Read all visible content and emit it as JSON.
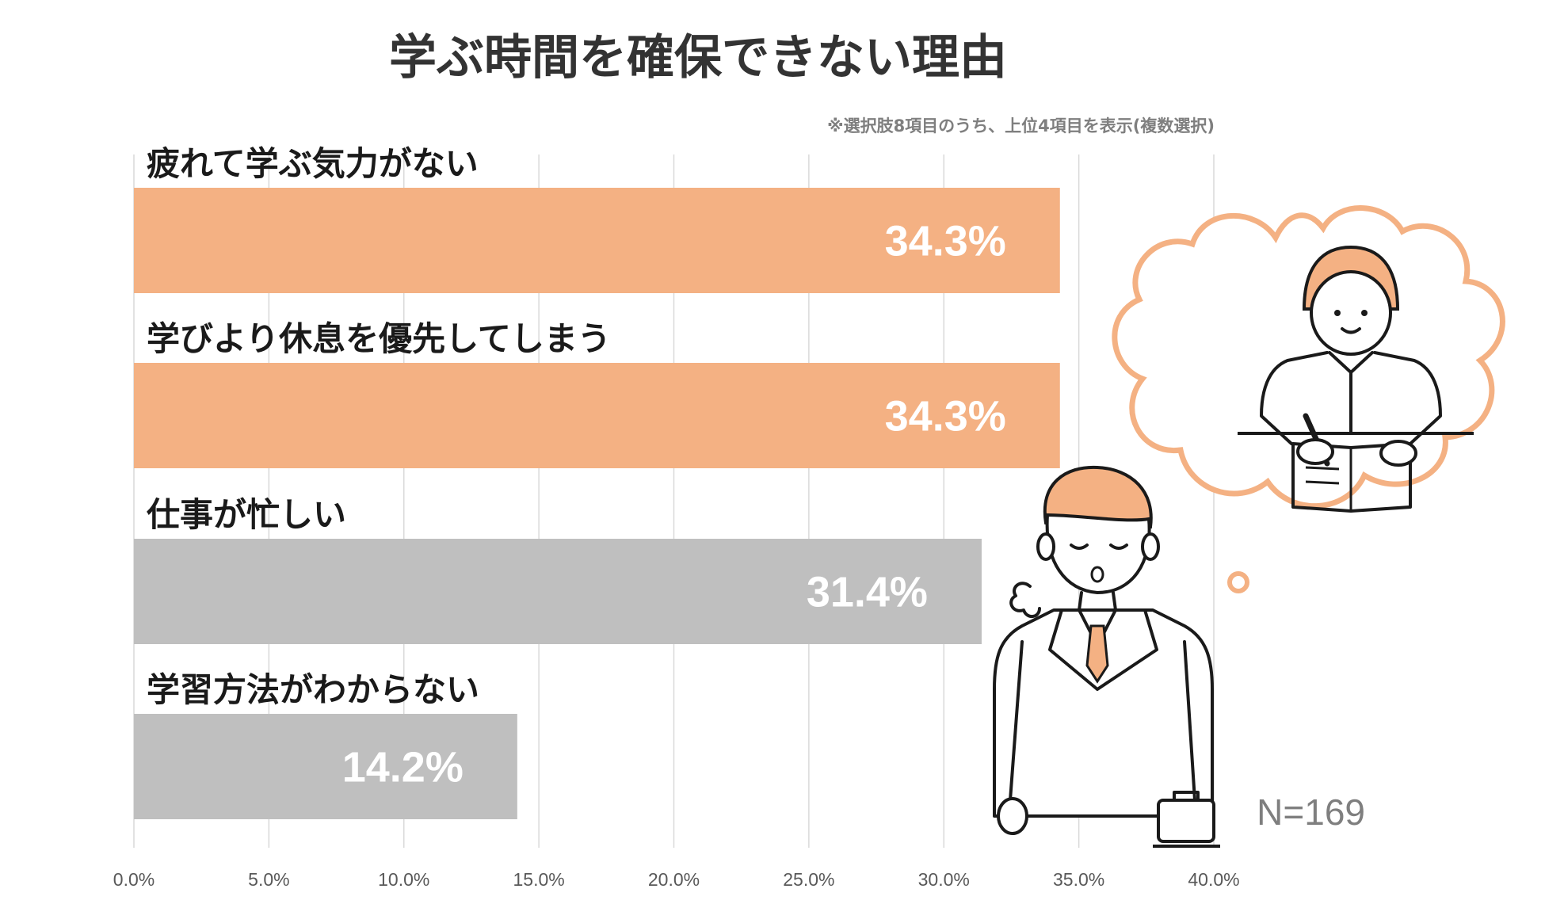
{
  "chart_data": {
    "type": "bar",
    "orientation": "horizontal",
    "title": "学ぶ時間を確保できない理由",
    "note": "※選択肢8項目のうち、上位4項目を表示(複数選択)",
    "categories": [
      "疲れて学ぶ気力がない",
      "学びより休息を優先してしまう",
      "仕事が忙しい",
      "学習方法がわからない"
    ],
    "values": [
      34.3,
      34.3,
      31.4,
      14.2
    ],
    "value_labels": [
      "34.3%",
      "34.3%",
      "31.4%",
      "14.2%"
    ],
    "bar_colors": [
      "#f4b183",
      "#f4b183",
      "#bfbfbf",
      "#bfbfbf"
    ],
    "xlim": [
      0,
      40
    ],
    "xticks": [
      0,
      5,
      10,
      15,
      20,
      25,
      30,
      35,
      40
    ],
    "xtick_labels": [
      "0.0%",
      "5.0%",
      "10.0%",
      "15.0%",
      "20.0%",
      "25.0%",
      "30.0%",
      "35.0%",
      "40.0%"
    ],
    "grid": true,
    "sample_size": "N=169"
  },
  "illustration": {
    "icons": [
      "tired-businessman-icon",
      "thought-bubble-icon",
      "studying-person-icon"
    ],
    "accent_color": "#f4b183"
  }
}
